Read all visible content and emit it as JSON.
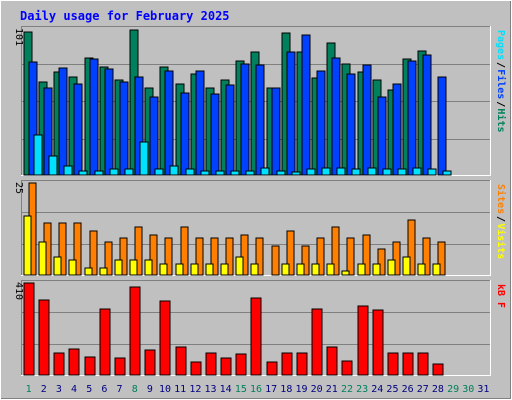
{
  "title": "Daily usage for February 2025",
  "days": [
    "1",
    "2",
    "3",
    "4",
    "5",
    "6",
    "7",
    "8",
    "9",
    "10",
    "11",
    "12",
    "13",
    "14",
    "15",
    "16",
    "17",
    "18",
    "19",
    "20",
    "21",
    "22",
    "23",
    "24",
    "25",
    "26",
    "27",
    "28",
    "29",
    "30",
    "31"
  ],
  "weekend_days": [
    1,
    8,
    15,
    16,
    22,
    23,
    29,
    30
  ],
  "colors": {
    "background": "#c0c0c0",
    "title": "#0000ff",
    "hits": "#00805c",
    "files": "#0040ff",
    "pages": "#00e0ff",
    "visits": "#ffff00",
    "sites": "#ff8000",
    "kbytes": "#ff0000",
    "weekday_label": "#000080",
    "weekend_label": "#00805c"
  },
  "chart_data": [
    {
      "type": "bar",
      "name": "hits-files-pages",
      "y_max_label": "101",
      "ylim": [
        0,
        101
      ],
      "legend": [
        "Pages",
        "Files",
        "Hits"
      ],
      "series": [
        {
          "name": "Hits",
          "values": [
            99,
            64,
            71,
            68,
            81,
            75,
            66,
            100,
            60,
            75,
            63,
            70,
            60,
            66,
            79,
            85,
            60,
            98,
            85,
            67,
            91,
            77,
            71,
            66,
            59,
            80,
            86,
            0,
            0,
            0,
            0
          ]
        },
        {
          "name": "Files",
          "values": [
            78,
            60,
            74,
            63,
            80,
            73,
            64,
            68,
            54,
            72,
            57,
            72,
            56,
            62,
            77,
            76,
            60,
            85,
            97,
            72,
            81,
            70,
            76,
            54,
            63,
            79,
            83,
            68,
            0,
            0,
            0
          ]
        },
        {
          "name": "Pages",
          "values": [
            28,
            13,
            6,
            3,
            3,
            4,
            4,
            23,
            4,
            6,
            4,
            3,
            3,
            3,
            3,
            5,
            3,
            2,
            4,
            5,
            5,
            4,
            5,
            4,
            4,
            5,
            4,
            3,
            0,
            0,
            0
          ]
        }
      ]
    },
    {
      "type": "bar",
      "name": "sites-visits",
      "y_max_label": "25",
      "ylim": [
        0,
        25
      ],
      "legend": [
        "Sites",
        "Visits"
      ],
      "series": [
        {
          "name": "Visits",
          "values": [
            16,
            9,
            5,
            4,
            2,
            2,
            4,
            4,
            4,
            3,
            3,
            3,
            3,
            3,
            5,
            3,
            0,
            3,
            3,
            3,
            3,
            1,
            3,
            3,
            4,
            5,
            3,
            3,
            0,
            0,
            0
          ]
        },
        {
          "name": "Sites",
          "values": [
            25,
            14,
            14,
            14,
            12,
            9,
            10,
            13,
            11,
            10,
            13,
            10,
            10,
            10,
            11,
            10,
            8,
            12,
            8,
            10,
            13,
            10,
            11,
            7,
            9,
            15,
            10,
            9,
            0,
            0,
            0
          ]
        }
      ]
    },
    {
      "type": "bar",
      "name": "kbytes",
      "y_max_label": "410",
      "ylim": [
        0,
        410
      ],
      "legend": [
        "kB F"
      ],
      "series": [
        {
          "name": "kB F",
          "values": [
            410,
            336,
            96,
            118,
            82,
            296,
            74,
            392,
            112,
            330,
            124,
            58,
            98,
            76,
            92,
            342,
            56,
            100,
            96,
            294,
            124,
            64,
            308,
            290,
            98,
            100,
            98,
            50,
            0,
            0,
            0
          ]
        }
      ]
    }
  ]
}
